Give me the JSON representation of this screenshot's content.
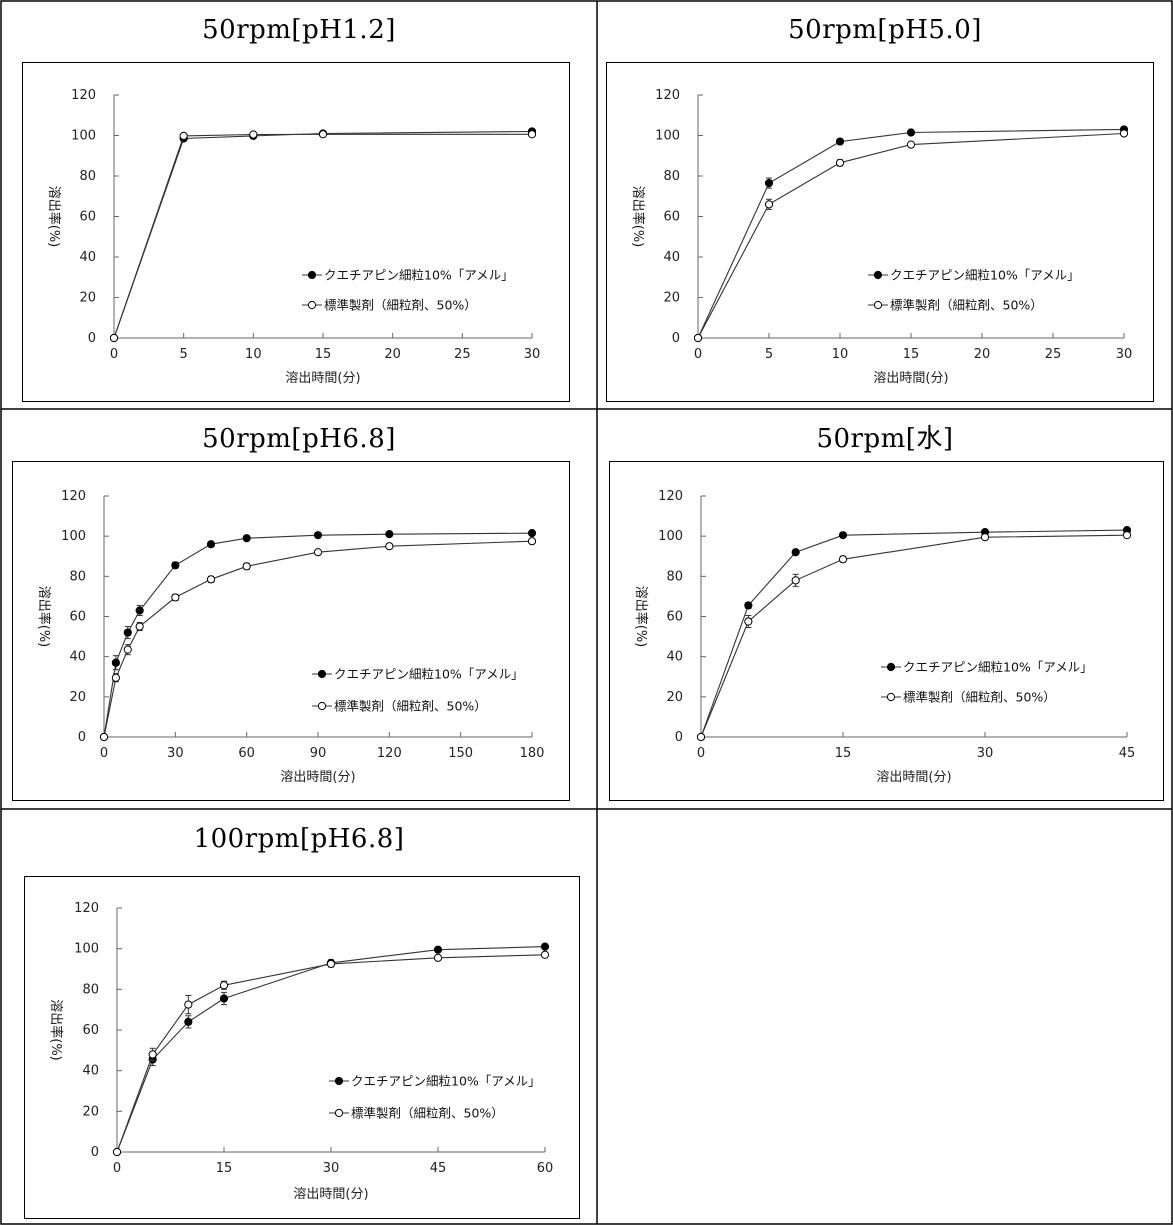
{
  "chart_data": [
    {
      "type": "line",
      "title": "50rpm[pH1.2]",
      "xlabel": "溶出時間(分)",
      "ylabel": "溶出率(%)",
      "xlim": [
        0,
        30
      ],
      "ylim": [
        0,
        120
      ],
      "xticks": [
        0,
        5,
        10,
        15,
        20,
        25,
        30
      ],
      "yticks": [
        0,
        20,
        40,
        60,
        80,
        100,
        120
      ],
      "legend_position": "lower-right",
      "grid": false,
      "series": [
        {
          "name": "クエチアピン細粒10%「アメル」",
          "marker": "filled-circle",
          "x": [
            0,
            5,
            10,
            15,
            30
          ],
          "y": [
            0,
            98.5,
            99.8,
            101.0,
            102.0
          ],
          "err": [
            0,
            0.5,
            0.5,
            0.5,
            0.5
          ]
        },
        {
          "name": "標準製剤（細粒剤、50%）",
          "marker": "open-circle",
          "x": [
            0,
            5,
            10,
            15,
            30
          ],
          "y": [
            0,
            99.8,
            100.5,
            100.6,
            100.6
          ],
          "err": [
            0,
            0.5,
            0.5,
            0.5,
            0.5
          ]
        }
      ]
    },
    {
      "type": "line",
      "title": "50rpm[pH5.0]",
      "xlabel": "溶出時間(分)",
      "ylabel": "溶出率(%)",
      "xlim": [
        0,
        30
      ],
      "ylim": [
        0,
        120
      ],
      "xticks": [
        0,
        5,
        10,
        15,
        20,
        25,
        30
      ],
      "yticks": [
        0,
        20,
        40,
        60,
        80,
        100,
        120
      ],
      "legend_position": "lower-right",
      "grid": false,
      "series": [
        {
          "name": "クエチアピン細粒10%「アメル」",
          "marker": "filled-circle",
          "x": [
            0,
            5,
            10,
            15,
            30
          ],
          "y": [
            0,
            76.5,
            97.0,
            101.5,
            103.0
          ],
          "err": [
            0,
            2.5,
            1.0,
            0.8,
            0.8
          ]
        },
        {
          "name": "標準製剤（細粒剤、50%）",
          "marker": "open-circle",
          "x": [
            0,
            5,
            10,
            15,
            30
          ],
          "y": [
            0,
            66.0,
            86.5,
            95.5,
            101.0
          ],
          "err": [
            0,
            2.5,
            1.5,
            0.8,
            0.8
          ]
        }
      ]
    },
    {
      "type": "line",
      "title": "50rpm[pH6.8]",
      "xlabel": "溶出時間(分)",
      "ylabel": "溶出率(%)",
      "xlim": [
        0,
        180
      ],
      "ylim": [
        0,
        120
      ],
      "xticks": [
        0,
        30,
        60,
        90,
        120,
        150,
        180
      ],
      "yticks": [
        0,
        20,
        40,
        60,
        80,
        100,
        120
      ],
      "legend_position": "lower-right",
      "grid": false,
      "series": [
        {
          "name": "クエチアピン細粒10%「アメル」",
          "marker": "filled-circle",
          "x": [
            0,
            5,
            10,
            15,
            30,
            45,
            60,
            90,
            120,
            180
          ],
          "y": [
            0,
            37.0,
            52.0,
            63.0,
            85.5,
            96.0,
            99.0,
            100.5,
            101.0,
            101.5
          ],
          "err": [
            0,
            3.5,
            3.0,
            2.5,
            1.5,
            1.0,
            0.8,
            0.5,
            0.5,
            0.5
          ]
        },
        {
          "name": "標準製剤（細粒剤、50%）",
          "marker": "open-circle",
          "x": [
            0,
            5,
            10,
            15,
            30,
            45,
            60,
            90,
            120,
            180
          ],
          "y": [
            0,
            29.5,
            43.5,
            55.0,
            69.5,
            78.5,
            85.0,
            92.0,
            95.0,
            97.5
          ],
          "err": [
            0,
            2.0,
            2.5,
            2.0,
            1.5,
            1.5,
            1.5,
            1.0,
            0.8,
            0.5
          ]
        }
      ]
    },
    {
      "type": "line",
      "title": "50rpm[水]",
      "xlabel": "溶出時間(分)",
      "ylabel": "溶出率(%)",
      "xlim": [
        0,
        45
      ],
      "ylim": [
        0,
        120
      ],
      "xticks": [
        0,
        15,
        30,
        45
      ],
      "yticks": [
        0,
        20,
        40,
        60,
        80,
        100,
        120
      ],
      "legend_position": "lower-right",
      "grid": false,
      "series": [
        {
          "name": "クエチアピン細粒10%「アメル」",
          "marker": "filled-circle",
          "x": [
            0,
            5,
            10,
            15,
            30,
            45
          ],
          "y": [
            0,
            65.5,
            92.0,
            100.5,
            102.0,
            103.0
          ],
          "err": [
            0,
            1.5,
            1.0,
            0.8,
            0.5,
            0.5
          ]
        },
        {
          "name": "標準製剤（細粒剤、50%）",
          "marker": "open-circle",
          "x": [
            0,
            5,
            10,
            15,
            30,
            45
          ],
          "y": [
            0,
            57.5,
            78.0,
            88.5,
            99.5,
            100.5
          ],
          "err": [
            0,
            3.0,
            3.0,
            1.5,
            0.8,
            0.5
          ]
        }
      ]
    },
    {
      "type": "line",
      "title": "100rpm[pH6.8]",
      "xlabel": "溶出時間(分)",
      "ylabel": "溶出率(%)",
      "xlim": [
        0,
        60
      ],
      "ylim": [
        0,
        120
      ],
      "xticks": [
        0,
        15,
        30,
        45,
        60
      ],
      "yticks": [
        0,
        20,
        40,
        60,
        80,
        100,
        120
      ],
      "legend_position": "lower-right",
      "grid": false,
      "series": [
        {
          "name": "クエチアピン細粒10%「アメル」",
          "marker": "filled-circle",
          "x": [
            0,
            5,
            10,
            15,
            30,
            45,
            60
          ],
          "y": [
            0,
            45.5,
            64.0,
            75.5,
            93.0,
            99.5,
            101.0
          ],
          "err": [
            0,
            3.0,
            3.0,
            3.0,
            1.5,
            0.8,
            0.5
          ]
        },
        {
          "name": "標準製剤（細粒剤、50%）",
          "marker": "open-circle",
          "x": [
            0,
            5,
            10,
            15,
            30,
            45,
            60
          ],
          "y": [
            0,
            48.0,
            72.5,
            82.0,
            92.5,
            95.5,
            97.0
          ],
          "err": [
            0,
            3.0,
            4.5,
            2.0,
            1.5,
            0.8,
            0.5
          ]
        }
      ]
    }
  ]
}
